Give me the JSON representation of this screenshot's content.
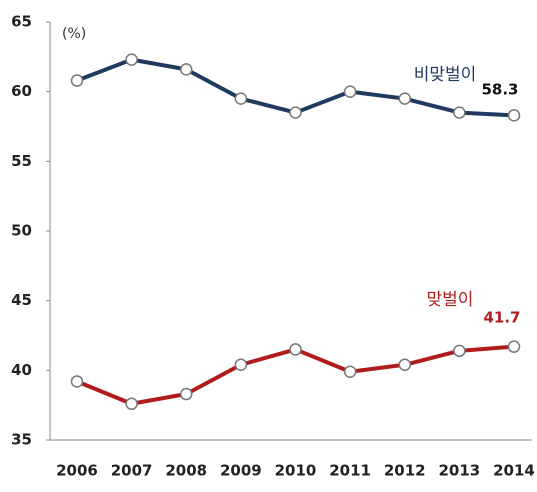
{
  "chart_data": {
    "type": "line",
    "unit_label": "(%)",
    "categories": [
      "2006",
      "2007",
      "2008",
      "2009",
      "2010",
      "2011",
      "2012",
      "2013",
      "2014"
    ],
    "series": [
      {
        "name": "비맞벌이",
        "color": "#1f3a5f",
        "values": [
          60.8,
          62.3,
          61.6,
          59.5,
          58.5,
          60.0,
          59.5,
          58.5,
          58.3
        ]
      },
      {
        "name": "맞벌이",
        "color": "#b01c1c",
        "values": [
          39.2,
          37.6,
          38.3,
          40.4,
          41.5,
          39.9,
          40.4,
          41.4,
          41.7
        ]
      }
    ],
    "ylim": [
      35,
      65
    ],
    "yticks": [
      35,
      40,
      45,
      50,
      55,
      60,
      65
    ],
    "grid": false
  }
}
